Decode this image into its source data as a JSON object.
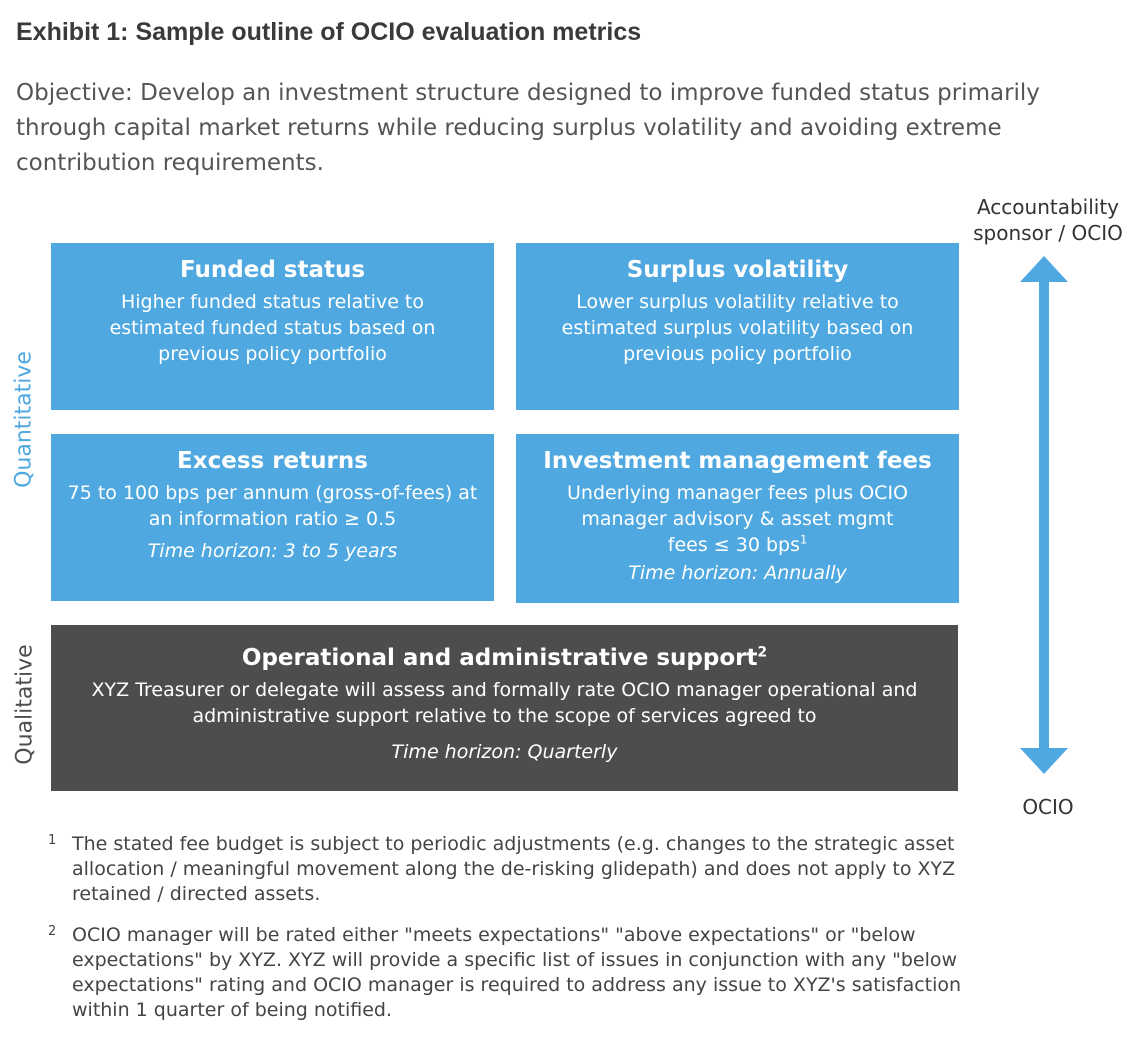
{
  "title": "Exhibit 1: Sample outline of OCIO evaluation metrics",
  "objective": "Objective: Develop an investment structure designed to improve funded status primarily through capital market returns while reducing surplus volatility and avoiding extreme contribution requirements.",
  "accountability": {
    "top_line1": "Accountability",
    "top_line2": "sponsor / OCIO",
    "bottom": "OCIO"
  },
  "side_labels": {
    "quantitative": "Quantitative",
    "qualitative": "Qualitative"
  },
  "boxes": {
    "funded_status": {
      "title": "Funded status",
      "body": "Higher funded status relative to estimated funded status based on previous policy portfolio"
    },
    "surplus_volatility": {
      "title": "Surplus volatility",
      "body": "Lower surplus volatility relative to estimated surplus volatility based on previous policy portfolio"
    },
    "excess_returns": {
      "title": "Excess returns",
      "body": "75 to 100 bps per annum (gross-of-fees) at an information ratio ≥ 0.5",
      "horizon": "Time horizon: 3 to 5 years"
    },
    "investment_fees": {
      "title": "Investment management fees",
      "body": "Underlying manager fees plus OCIO manager advisory & asset mgmt fees ≤ 30 bps",
      "sup": "1",
      "horizon": "Time horizon: Annually"
    },
    "operational": {
      "title": "Operational and administrative support",
      "sup": "2",
      "body": "XYZ Treasurer or delegate will assess and formally rate OCIO manager operational and administrative support relative to the scope of services agreed to",
      "horizon": "Time horizon: Quarterly"
    }
  },
  "footnotes": [
    {
      "num": "1",
      "text": "The stated fee budget is subject to periodic adjustments (e.g. changes to the strategic asset allocation / meaningful movement along the de-risking glidepath) and does not apply to XYZ retained / directed assets."
    },
    {
      "num": "2",
      "text": "OCIO manager will be rated either \"meets expectations\" \"above expectations\" or \"below expectations\" by XYZ. XYZ will provide a specific list of issues in conjunction with any \"below expectations\" rating and OCIO manager is required to address any issue to XYZ's satisfaction within 1 quarter of being notified."
    }
  ],
  "colors": {
    "box_blue": "#4fa8e0",
    "box_dark": "#4d4d4d",
    "arrow_blue": "#4fa8e0",
    "quant_label": "#4fa8e0",
    "qual_label": "#4d4d4d"
  }
}
